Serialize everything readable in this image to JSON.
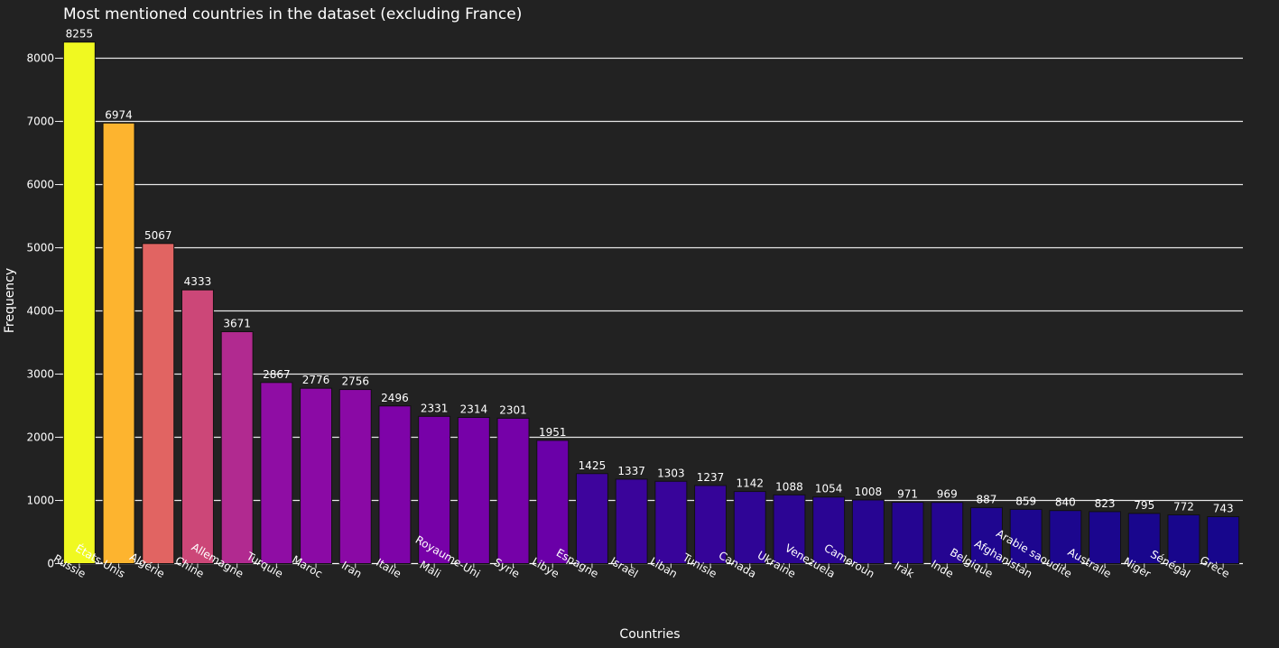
{
  "chart_data": {
    "type": "bar",
    "title": "Most mentioned countries in the dataset (excluding France)",
    "xlabel": "Countries",
    "ylabel": "Frequency",
    "ylim": [
      0,
      8350
    ],
    "yticks": [
      0,
      1000,
      2000,
      3000,
      4000,
      5000,
      6000,
      7000,
      8000
    ],
    "grid": true,
    "colorscale": "plasma",
    "categories": [
      "Russie",
      "États-Unis",
      "Algérie",
      "Chine",
      "Allemagne",
      "Turquie",
      "Maroc",
      "Iran",
      "Italie",
      "Mali",
      "Royaume-Uni",
      "Syrie",
      "Libye",
      "Espagne",
      "Israël",
      "Liban",
      "Tunisie",
      "Canada",
      "Ukraine",
      "Venezuela",
      "Cameroun",
      "Irak",
      "Inde",
      "Belgique",
      "Afghanistan",
      "Arabie saoudite",
      "Australie",
      "Niger",
      "Sénégal",
      "Grèce"
    ],
    "values": [
      8255,
      6974,
      5067,
      4333,
      3671,
      2867,
      2776,
      2756,
      2496,
      2331,
      2314,
      2301,
      1951,
      1425,
      1337,
      1303,
      1237,
      1142,
      1088,
      1054,
      1008,
      971,
      969,
      887,
      859,
      840,
      823,
      795,
      772,
      743
    ],
    "colors": [
      "#f0f921",
      "#fdb42f",
      "#e16462",
      "#cc4778",
      "#b12a90",
      "#8f0da4",
      "#8b0aa5",
      "#8a09a5",
      "#7e03a8",
      "#7701a8",
      "#7601a8",
      "#7501a8",
      "#6a00a8",
      "#3e049c",
      "#3a049a",
      "#38049a",
      "#350498",
      "#2f0596",
      "#2c0594",
      "#2a0593",
      "#270592",
      "#250591",
      "#250591",
      "#1f0690",
      "#1d068f",
      "#1c068e",
      "#1b068e",
      "#19068d",
      "#18068c",
      "#17068c"
    ]
  }
}
